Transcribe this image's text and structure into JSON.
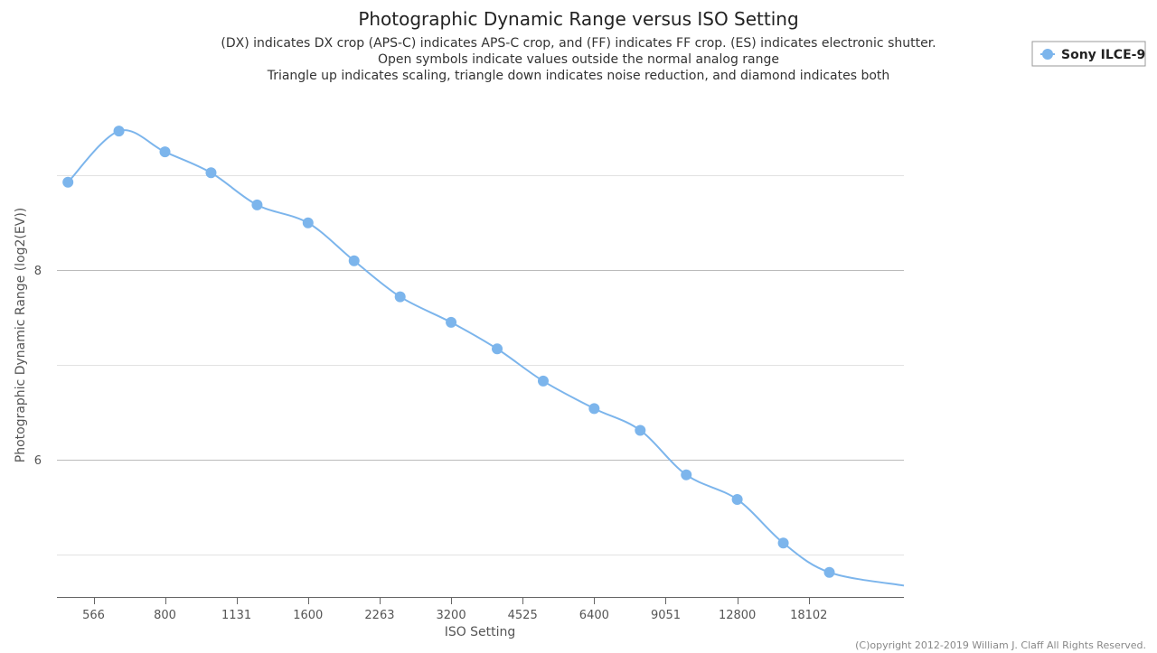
{
  "chart_data": {
    "type": "line",
    "title": "Photographic Dynamic Range versus ISO Setting",
    "subtitle": [
      "(DX) indicates DX crop (APS-C) indicates APS-C crop, and (FF) indicates FF crop. (ES) indicates electronic shutter.",
      "Open symbols indicate values outside the normal analog range",
      "Triangle up indicates scaling, triangle down indicates noise reduction, and diamond indicates both"
    ],
    "xlabel": "ISO Setting",
    "ylabel": "Photographic Dynamic Range (log2(EV))",
    "x_scale": "log2",
    "x_ticks": [
      566,
      800,
      1131,
      1600,
      2263,
      3200,
      4525,
      6400,
      9051,
      12800,
      18102
    ],
    "y_ticks": [
      6,
      8
    ],
    "ylim": [
      4.55,
      9.9
    ],
    "xlim": [
      474,
      28700
    ],
    "grid": true,
    "legend_position": "top-right",
    "series": [
      {
        "name": "Sony ILCE-9",
        "color": "#7cb5ec",
        "marker": "circle",
        "x": [
          500,
          640,
          800,
          1000,
          1250,
          1600,
          2000,
          2500,
          3200,
          4000,
          5000,
          6400,
          8000,
          10000,
          12800,
          16000,
          20000
        ],
        "y": [
          8.93,
          9.47,
          9.25,
          9.03,
          8.69,
          8.5,
          8.1,
          7.72,
          7.45,
          7.17,
          6.83,
          6.54,
          6.31,
          5.84,
          5.58,
          5.12,
          4.81
        ],
        "end_y": 4.67
      }
    ],
    "credit": "(C)opyright 2012-2019 William J. Claff All Rights Reserved."
  }
}
